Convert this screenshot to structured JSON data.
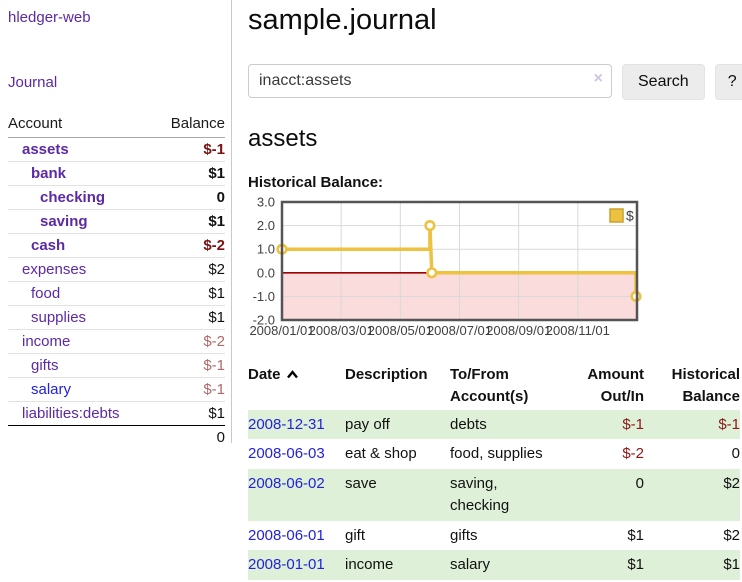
{
  "app": {
    "brand": "hledger-web",
    "nav_journal": "Journal"
  },
  "colors": {
    "link_purple": "#5b2aa4",
    "link_blue": "#2222dd",
    "negative_strong": "#7d1111",
    "negative_muted": "#b26868",
    "register_negative": "#8b1717",
    "row_stripe_green": "#dff0d8",
    "chart_line_gold": "#edc240",
    "chart_zero_red": "#a00000",
    "chart_negative_fill": "#fbdcdc",
    "chart_grid": "#d9d9d9",
    "chart_border": "#545454"
  },
  "sidebar": {
    "headers": {
      "account": "Account",
      "balance": "Balance"
    },
    "accounts": [
      {
        "name": "assets",
        "level": 1,
        "bold": true,
        "balance": "$-1",
        "balance_style": "neg-strong"
      },
      {
        "name": "bank",
        "level": 2,
        "bold": true,
        "balance": "$1",
        "balance_style": "pos"
      },
      {
        "name": "checking",
        "level": 3,
        "bold": true,
        "balance": "0",
        "balance_style": "pos"
      },
      {
        "name": "saving",
        "level": 3,
        "bold": true,
        "balance": "$1",
        "balance_style": "pos"
      },
      {
        "name": "cash",
        "level": 2,
        "bold": true,
        "balance": "$-2",
        "balance_style": "neg-strong"
      },
      {
        "name": "expenses",
        "level": 1,
        "bold": false,
        "balance": "$2",
        "balance_style": "pos"
      },
      {
        "name": "food",
        "level": 2,
        "bold": false,
        "balance": "$1",
        "balance_style": "pos"
      },
      {
        "name": "supplies",
        "level": 2,
        "bold": false,
        "balance": "$1",
        "balance_style": "pos"
      },
      {
        "name": "income",
        "level": 1,
        "bold": false,
        "balance": "$-2",
        "balance_style": "neg-muted"
      },
      {
        "name": "gifts",
        "level": 2,
        "bold": false,
        "balance": "$-1",
        "balance_style": "neg-muted"
      },
      {
        "name": "salary",
        "level": 2,
        "bold": false,
        "balance": "$-1",
        "balance_style": "neg-muted",
        "link_color": "blue"
      },
      {
        "name": "liabilities:debts",
        "level": 1,
        "bold": false,
        "balance": "$1",
        "balance_style": "pos"
      }
    ],
    "total": "0"
  },
  "header": {
    "title": "sample.journal"
  },
  "search": {
    "value": "inacct:assets",
    "clear_icon": "×",
    "button_label": "Search",
    "help_label": "?"
  },
  "account_page": {
    "title": "assets",
    "section_label": "Historical Balance:"
  },
  "chart_data": {
    "type": "line",
    "title": "Historical Balance:",
    "legend": {
      "label": "$",
      "position": "top-right"
    },
    "x_ticks": [
      "2008/01/01",
      "2008/03/01",
      "2008/05/01",
      "2008/07/01",
      "2008/09/01",
      "2008/11/01"
    ],
    "y_ticks": [
      "3.0",
      "2.0",
      "1.0",
      "0.0",
      "-1.0",
      "-2.0"
    ],
    "ylim": [
      -2,
      3
    ],
    "xlim": [
      "2008-01-01",
      "2008-12-31"
    ],
    "grid": true,
    "zero_line": true,
    "negative_region_shaded": true,
    "series": [
      {
        "name": "$",
        "points": [
          [
            "2008-01-01",
            1
          ],
          [
            "2008-06-01",
            1
          ],
          [
            "2008-06-01",
            2
          ],
          [
            "2008-06-03",
            0
          ],
          [
            "2008-12-31",
            0
          ],
          [
            "2008-12-31",
            -1
          ]
        ],
        "markers": [
          [
            "2008-01-01",
            1
          ],
          [
            "2008-06-01",
            2
          ],
          [
            "2008-06-03",
            0
          ],
          [
            "2008-12-31",
            -1
          ]
        ]
      }
    ]
  },
  "register": {
    "headers": {
      "date": "Date",
      "description": "Description",
      "accounts": "To/From Account(s)",
      "amount": "Amount Out/In",
      "balance": "Historical Balance"
    },
    "sort": {
      "column": "date",
      "direction": "asc",
      "icon": "chevron-up"
    },
    "rows": [
      {
        "date": "2008-12-31",
        "description": "pay off",
        "accounts": "debts",
        "amount": "$-1",
        "amount_neg": true,
        "balance": "$-1",
        "balance_neg": true
      },
      {
        "date": "2008-06-03",
        "description": "eat & shop",
        "accounts": "food, supplies",
        "amount": "$-2",
        "amount_neg": true,
        "balance": "0",
        "balance_neg": false
      },
      {
        "date": "2008-06-02",
        "description": "save",
        "accounts": "saving, checking",
        "amount": "0",
        "amount_neg": false,
        "balance": "$2",
        "balance_neg": false
      },
      {
        "date": "2008-06-01",
        "description": "gift",
        "accounts": "gifts",
        "amount": "$1",
        "amount_neg": false,
        "balance": "$2",
        "balance_neg": false
      },
      {
        "date": "2008-01-01",
        "description": "income",
        "accounts": "salary",
        "amount": "$1",
        "amount_neg": false,
        "balance": "$1",
        "balance_neg": false
      }
    ]
  }
}
